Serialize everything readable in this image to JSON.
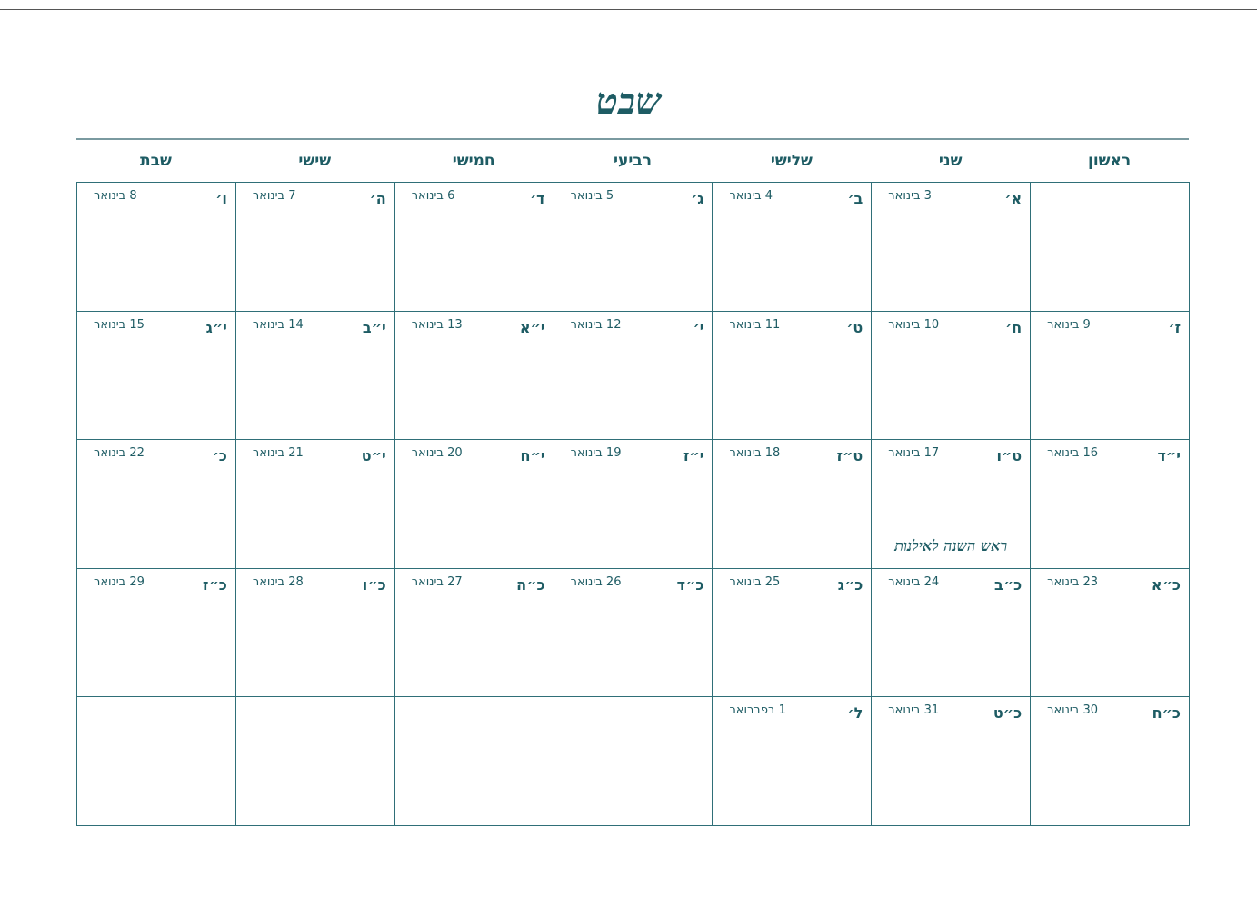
{
  "title": "שבט",
  "colors": {
    "accent": "#1e5c64"
  },
  "weekdays": [
    "ראשון",
    "שני",
    "שלישי",
    "רביעי",
    "חמישי",
    "שישי",
    "שבת"
  ],
  "weeks": [
    [
      {
        "heb": "",
        "greg": ""
      },
      {
        "heb": "א׳",
        "greg": "3 בינואר"
      },
      {
        "heb": "ב׳",
        "greg": "4 בינואר"
      },
      {
        "heb": "ג׳",
        "greg": "5 בינואר"
      },
      {
        "heb": "ד׳",
        "greg": "6 בינואר"
      },
      {
        "heb": "ה׳",
        "greg": "7 בינואר"
      },
      {
        "heb": "ו׳",
        "greg": "8 בינואר"
      }
    ],
    [
      {
        "heb": "ז׳",
        "greg": "9 בינואר"
      },
      {
        "heb": "ח׳",
        "greg": "10 בינואר"
      },
      {
        "heb": "ט׳",
        "greg": "11 בינואר"
      },
      {
        "heb": "י׳",
        "greg": "12 בינואר"
      },
      {
        "heb": "י״א",
        "greg": "13 בינואר"
      },
      {
        "heb": "י״ב",
        "greg": "14 בינואר"
      },
      {
        "heb": "י״ג",
        "greg": "15 בינואר"
      }
    ],
    [
      {
        "heb": "י״ד",
        "greg": "16 בינואר"
      },
      {
        "heb": "ט״ו",
        "greg": "17 בינואר",
        "note": "ראש השנה לאילנות"
      },
      {
        "heb": "ט״ז",
        "greg": "18 בינואר"
      },
      {
        "heb": "י״ז",
        "greg": "19 בינואר"
      },
      {
        "heb": "י״ח",
        "greg": "20 בינואר"
      },
      {
        "heb": "י״ט",
        "greg": "21 בינואר"
      },
      {
        "heb": "כ׳",
        "greg": "22 בינואר"
      }
    ],
    [
      {
        "heb": "כ״א",
        "greg": "23 בינואר"
      },
      {
        "heb": "כ״ב",
        "greg": "24 בינואר"
      },
      {
        "heb": "כ״ג",
        "greg": "25 בינואר"
      },
      {
        "heb": "כ״ד",
        "greg": "26 בינואר"
      },
      {
        "heb": "כ״ה",
        "greg": "27 בינואר"
      },
      {
        "heb": "כ״ו",
        "greg": "28 בינואר"
      },
      {
        "heb": "כ״ז",
        "greg": "29 בינואר"
      }
    ],
    [
      {
        "heb": "כ״ח",
        "greg": "30 בינואר"
      },
      {
        "heb": "כ״ט",
        "greg": "31 בינואר"
      },
      {
        "heb": "ל׳",
        "greg": "1 בפברואר"
      },
      {
        "heb": "",
        "greg": ""
      },
      {
        "heb": "",
        "greg": ""
      },
      {
        "heb": "",
        "greg": ""
      },
      {
        "heb": "",
        "greg": ""
      }
    ]
  ]
}
